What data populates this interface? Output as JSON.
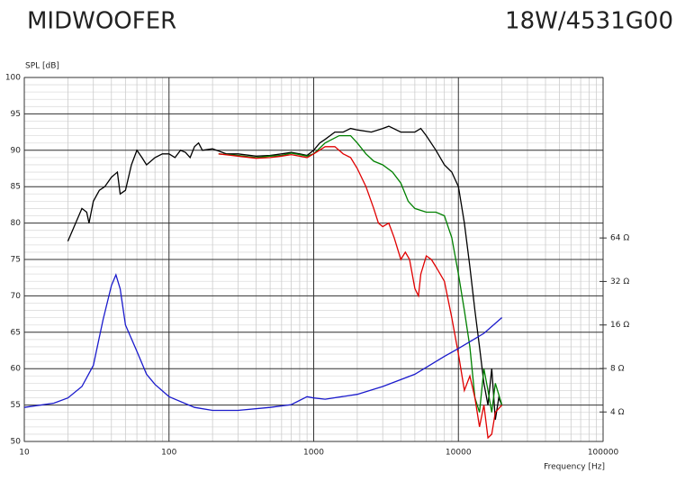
{
  "chart_data": {
    "type": "line",
    "title": "MIDWOOFER",
    "subtitle": "18W/4531G00",
    "y_label": "SPL [dB]",
    "x_label": "Frequency [Hz]",
    "xscale": "log",
    "xlim": [
      10,
      100000
    ],
    "xticks": [
      10,
      100,
      1000,
      10000,
      100000
    ],
    "ylim": [
      50,
      100
    ],
    "yticks": [
      100,
      95,
      90,
      85,
      80,
      75,
      70,
      65,
      60,
      55,
      50
    ],
    "y2scale": "log",
    "y2lim": [
      2.5,
      826
    ],
    "y2ticks": [
      {
        "value": 64,
        "label": "64 Ω"
      },
      {
        "value": 32,
        "label": "32 Ω"
      },
      {
        "value": 16,
        "label": "16 Ω"
      },
      {
        "value": 8,
        "label": "8 Ω"
      },
      {
        "value": 4,
        "label": "4 Ω"
      }
    ],
    "grid": true,
    "series": [
      {
        "color": "#000000",
        "x": [
          20,
          25,
          27,
          28,
          30,
          33,
          36,
          40,
          44,
          46,
          50,
          55,
          60,
          65,
          70,
          80,
          90,
          100,
          110,
          120,
          130,
          140,
          150,
          160,
          170,
          200,
          250,
          300,
          400,
          500,
          600,
          700,
          800,
          900,
          1000,
          1100,
          1200,
          1400,
          1600,
          1800,
          2000,
          2500,
          3000,
          3300,
          4000,
          5000,
          5500,
          6000,
          7000,
          8000,
          9000,
          10000,
          11000,
          12000,
          13000,
          14000,
          15000,
          16000,
          17000,
          18000,
          19000,
          20000
        ],
        "values": [
          77.5,
          82,
          81.5,
          80,
          83,
          84.5,
          85,
          86.3,
          87,
          84,
          84.5,
          88,
          90,
          89,
          88,
          89,
          89.5,
          89.5,
          89,
          90,
          89.7,
          89,
          90.5,
          91,
          90,
          90.2,
          89.5,
          89.5,
          89.2,
          89.3,
          89.5,
          89.7,
          89.5,
          89.3,
          90,
          91,
          91.5,
          92.5,
          92.5,
          93,
          92.8,
          92.5,
          93,
          93.3,
          92.5,
          92.5,
          93,
          92,
          90,
          88,
          87,
          85,
          80,
          74,
          68,
          63,
          58,
          55,
          60,
          53,
          56,
          55
        ]
      },
      {
        "color": "#008000",
        "x": [
          220,
          300,
          400,
          500,
          600,
          700,
          800,
          900,
          1000,
          1200,
          1500,
          1800,
          2000,
          2300,
          2600,
          3000,
          3500,
          4000,
          4500,
          5000,
          6000,
          7000,
          8000,
          9000,
          10000,
          11000,
          12000,
          13000,
          14000,
          15000,
          16000,
          17000,
          18000,
          20000
        ],
        "values": [
          89.5,
          89.3,
          89,
          89.2,
          89.3,
          89.6,
          89.4,
          89.2,
          89.5,
          91,
          92,
          92,
          91,
          89.5,
          88.5,
          88,
          87,
          85.5,
          83,
          82,
          81.5,
          81.5,
          81,
          78,
          73,
          68,
          63,
          56,
          54,
          60,
          57,
          54,
          58,
          55
        ]
      },
      {
        "color": "#e00000",
        "x": [
          220,
          300,
          400,
          500,
          600,
          700,
          800,
          900,
          1000,
          1200,
          1400,
          1600,
          1800,
          2000,
          2300,
          2600,
          2800,
          3000,
          3300,
          3600,
          4000,
          4300,
          4600,
          5000,
          5300,
          5500,
          6000,
          6500,
          7000,
          8000,
          9000,
          10000,
          11000,
          12000,
          13000,
          14000,
          15000,
          16000,
          17000,
          18000,
          20000
        ],
        "values": [
          89.5,
          89.2,
          88.9,
          89,
          89.2,
          89.4,
          89.2,
          89,
          89.5,
          90.5,
          90.5,
          89.5,
          89,
          87.5,
          85,
          82,
          80,
          79.5,
          80,
          78,
          75,
          76,
          75,
          71,
          70,
          73,
          75.5,
          75,
          74,
          72,
          67,
          62,
          57,
          59,
          56,
          52,
          55,
          50.5,
          51,
          54,
          55
        ]
      },
      {
        "color": "#1a1acc",
        "axis": "y2",
        "x": [
          10,
          16,
          20,
          25,
          30,
          35,
          40,
          43,
          46,
          50,
          60,
          70,
          80,
          100,
          150,
          200,
          300,
          500,
          700,
          900,
          1000,
          1200,
          2000,
          3000,
          5000,
          8000,
          10000,
          15000,
          20000
        ],
        "values": [
          4.3,
          4.6,
          5,
          6,
          8.4,
          17.4,
          30,
          35.6,
          28.5,
          16,
          10.5,
          7.3,
          6.2,
          5.1,
          4.3,
          4.1,
          4.1,
          4.3,
          4.5,
          5.1,
          5,
          4.9,
          5.3,
          6,
          7.3,
          9.7,
          11,
          14,
          18
        ]
      }
    ]
  }
}
